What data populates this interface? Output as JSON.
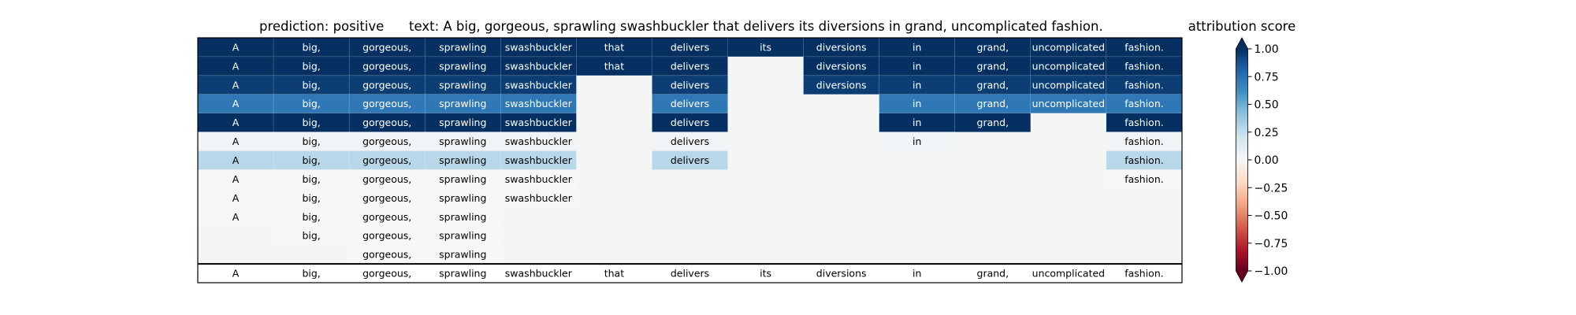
{
  "chart_data": {
    "type": "heatmap",
    "title_prediction": "prediction:  positive",
    "title_text": "text:  A big, gorgeous, sprawling swashbuckler that delivers its diversions in grand, uncomplicated fashion.",
    "colorbar_label": "attribution score",
    "colormap": "RdBu",
    "vmin": -1.0,
    "vmax": 1.0,
    "colorbar_ticks": [
      "1.00",
      "0.75",
      "0.50",
      "0.25",
      "0.00",
      "−0.25",
      "−0.50",
      "−0.75",
      "−1.00"
    ],
    "colorbar_tick_values": [
      1.0,
      0.75,
      0.5,
      0.25,
      0.0,
      -0.25,
      -0.5,
      -0.75,
      -1.0
    ],
    "tokens": [
      "A",
      "big,",
      "gorgeous,",
      "sprawling",
      "swashbuckler",
      "that",
      "delivers",
      "its",
      "diversions",
      "in",
      "grand,",
      "uncomplicated",
      "fashion."
    ],
    "rows": [
      {
        "shown": [
          1,
          1,
          1,
          1,
          1,
          1,
          1,
          1,
          1,
          1,
          1,
          1,
          1
        ],
        "values": [
          1.0,
          1.0,
          1.0,
          1.0,
          1.0,
          1.0,
          1.0,
          1.0,
          1.0,
          1.0,
          1.0,
          1.0,
          1.0
        ]
      },
      {
        "shown": [
          1,
          1,
          1,
          1,
          1,
          1,
          1,
          0,
          1,
          1,
          1,
          1,
          1
        ],
        "values": [
          1.0,
          1.0,
          1.0,
          1.0,
          1.0,
          1.0,
          1.0,
          0.0,
          1.0,
          1.0,
          1.0,
          1.0,
          1.0
        ]
      },
      {
        "shown": [
          1,
          1,
          1,
          1,
          1,
          0,
          1,
          0,
          1,
          1,
          1,
          1,
          1
        ],
        "values": [
          0.95,
          0.95,
          0.95,
          0.95,
          0.95,
          0.0,
          0.95,
          0.0,
          0.95,
          0.95,
          0.95,
          0.95,
          0.95
        ]
      },
      {
        "shown": [
          1,
          1,
          1,
          1,
          1,
          0,
          1,
          0,
          0,
          1,
          1,
          1,
          1
        ],
        "values": [
          0.72,
          0.72,
          0.72,
          0.72,
          0.72,
          0.0,
          0.72,
          0.0,
          0.0,
          0.72,
          0.72,
          0.72,
          0.72
        ]
      },
      {
        "shown": [
          1,
          1,
          1,
          1,
          1,
          0,
          1,
          0,
          0,
          1,
          1,
          0,
          1
        ],
        "values": [
          1.0,
          1.0,
          1.0,
          1.0,
          1.0,
          0.0,
          1.0,
          0.0,
          0.0,
          1.0,
          1.0,
          0.0,
          1.0
        ]
      },
      {
        "shown": [
          1,
          1,
          1,
          1,
          1,
          0,
          1,
          0,
          0,
          1,
          0,
          0,
          1
        ],
        "values": [
          0.03,
          0.03,
          0.03,
          0.03,
          0.03,
          0.0,
          0.03,
          0.0,
          0.0,
          0.03,
          0.0,
          0.0,
          0.03
        ]
      },
      {
        "shown": [
          1,
          1,
          1,
          1,
          1,
          0,
          1,
          0,
          0,
          0,
          0,
          0,
          1
        ],
        "values": [
          0.28,
          0.28,
          0.28,
          0.28,
          0.28,
          0.0,
          0.28,
          0.0,
          0.0,
          0.0,
          0.0,
          0.0,
          0.28
        ]
      },
      {
        "shown": [
          1,
          1,
          1,
          1,
          1,
          0,
          0,
          0,
          0,
          0,
          0,
          0,
          1
        ],
        "values": [
          0.0,
          0.0,
          0.0,
          0.0,
          0.0,
          0.0,
          0.0,
          0.0,
          0.0,
          0.0,
          0.0,
          0.0,
          0.0
        ]
      },
      {
        "shown": [
          1,
          1,
          1,
          1,
          1,
          0,
          0,
          0,
          0,
          0,
          0,
          0,
          0
        ],
        "values": [
          0.0,
          0.0,
          0.0,
          0.0,
          0.0,
          0.0,
          0.0,
          0.0,
          0.0,
          0.0,
          0.0,
          0.0,
          0.0
        ]
      },
      {
        "shown": [
          1,
          1,
          1,
          1,
          0,
          0,
          0,
          0,
          0,
          0,
          0,
          0,
          0
        ],
        "values": [
          0.0,
          0.0,
          0.0,
          0.0,
          0.0,
          0.0,
          0.0,
          0.0,
          0.0,
          0.0,
          0.0,
          0.0,
          0.0
        ]
      },
      {
        "shown": [
          0,
          1,
          1,
          1,
          0,
          0,
          0,
          0,
          0,
          0,
          0,
          0,
          0
        ],
        "values": [
          0.0,
          0.0,
          0.0,
          0.0,
          0.0,
          0.0,
          0.0,
          0.0,
          0.0,
          0.0,
          0.0,
          0.0,
          0.0
        ]
      },
      {
        "shown": [
          0,
          0,
          1,
          1,
          0,
          0,
          0,
          0,
          0,
          0,
          0,
          0,
          0
        ],
        "values": [
          0.0,
          0.0,
          0.0,
          0.0,
          0.0,
          0.0,
          0.0,
          0.0,
          0.0,
          0.0,
          0.0,
          0.0,
          0.0
        ]
      }
    ],
    "grid": false
  }
}
